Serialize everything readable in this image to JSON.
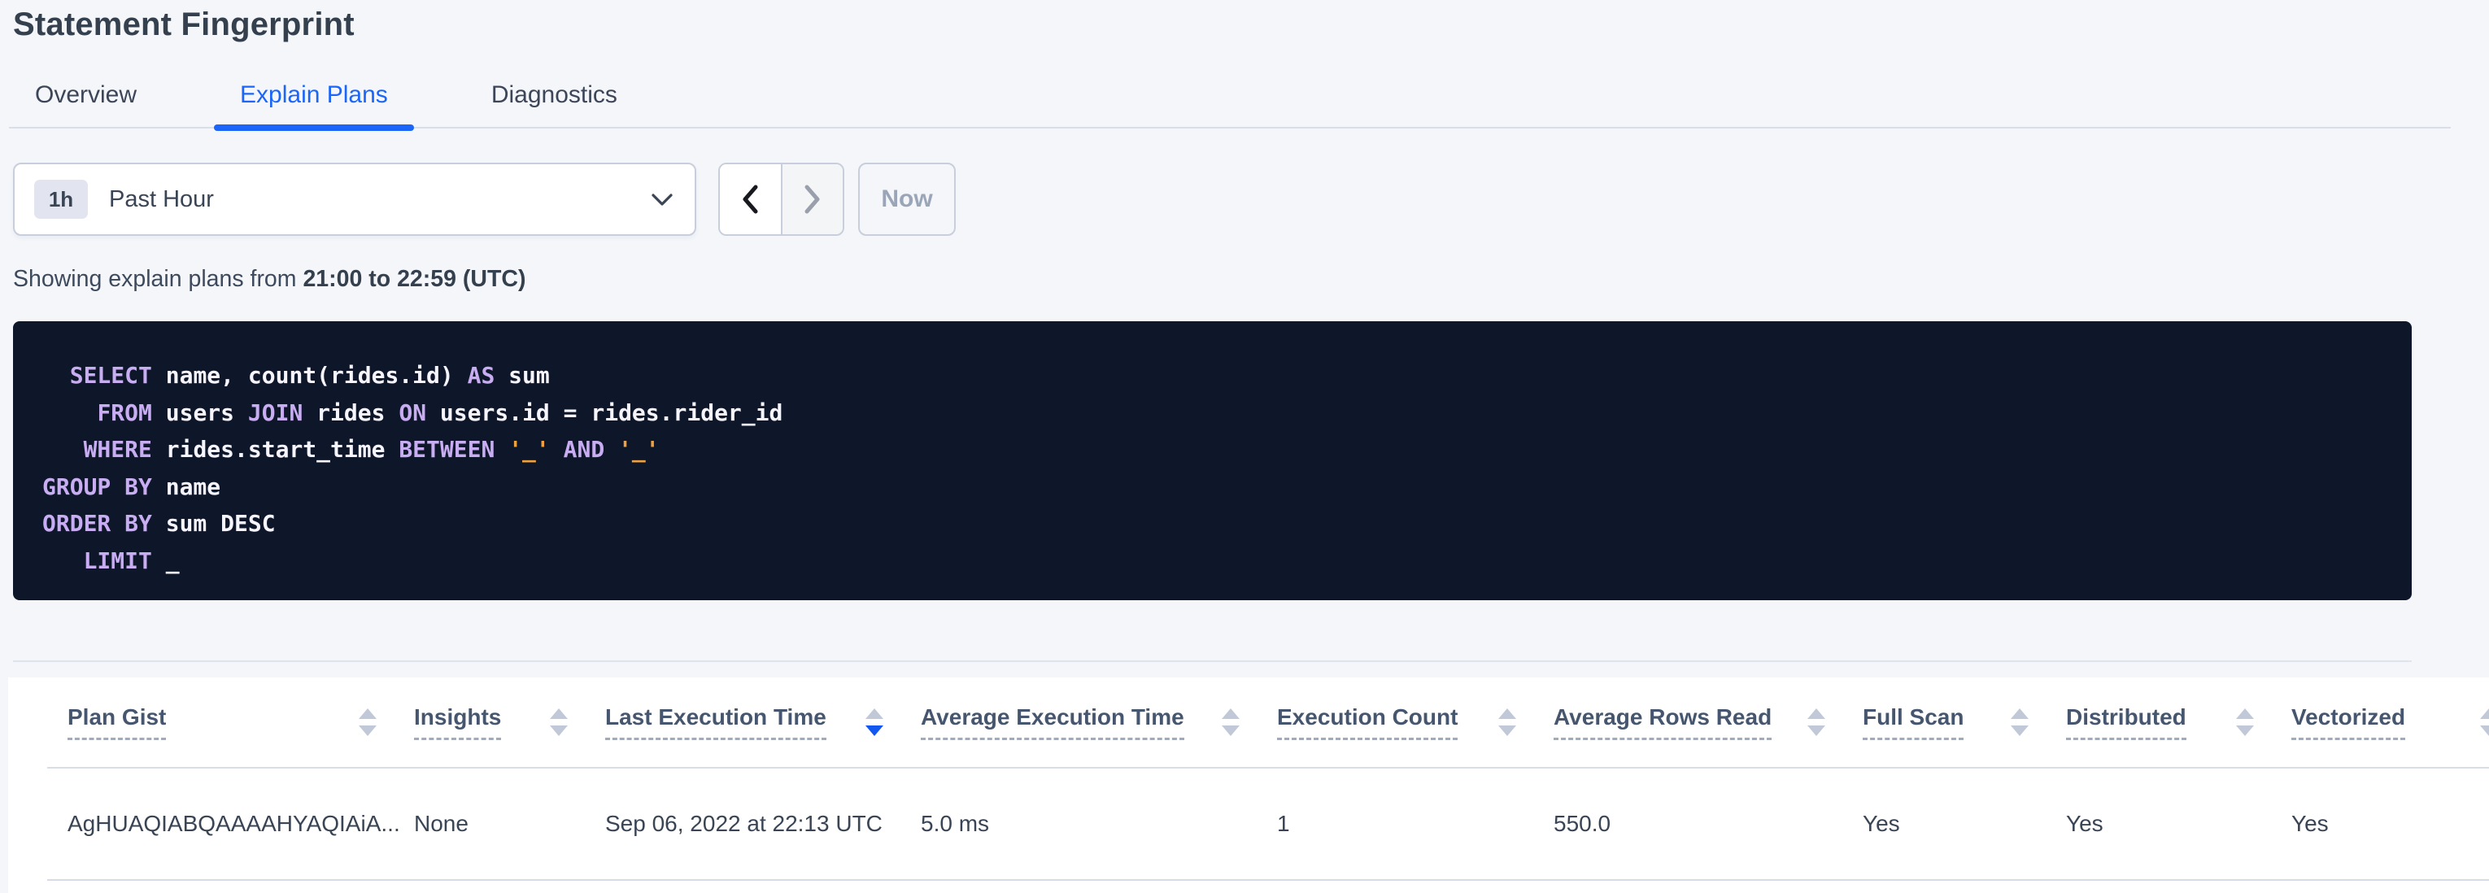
{
  "page": {
    "title": "Statement Fingerprint"
  },
  "tabs": [
    {
      "label": "Overview",
      "active": false
    },
    {
      "label": "Explain Plans",
      "active": true
    },
    {
      "label": "Diagnostics",
      "active": false
    }
  ],
  "time_picker": {
    "interval_badge": "1h",
    "label": "Past Hour",
    "prev_enabled": true,
    "next_enabled": false,
    "now_label": "Now"
  },
  "summary": {
    "prefix": "Showing explain plans from ",
    "range": "21:00 to 22:59 (UTC)"
  },
  "sql": {
    "lines": [
      [
        {
          "c": "p",
          "s": "  "
        },
        {
          "c": "k",
          "s": "SELECT"
        },
        {
          "c": "p",
          "s": " name, count(rides.id) "
        },
        {
          "c": "k",
          "s": "AS"
        },
        {
          "c": "p",
          "s": " sum"
        }
      ],
      [
        {
          "c": "p",
          "s": "    "
        },
        {
          "c": "k",
          "s": "FROM"
        },
        {
          "c": "p",
          "s": " users "
        },
        {
          "c": "k",
          "s": "JOIN"
        },
        {
          "c": "p",
          "s": " rides "
        },
        {
          "c": "k",
          "s": "ON"
        },
        {
          "c": "p",
          "s": " users.id = rides.rider_id"
        }
      ],
      [
        {
          "c": "p",
          "s": "   "
        },
        {
          "c": "k",
          "s": "WHERE"
        },
        {
          "c": "p",
          "s": " rides.start_time "
        },
        {
          "c": "k",
          "s": "BETWEEN"
        },
        {
          "c": "p",
          "s": " "
        },
        {
          "c": "s",
          "s": "'_'"
        },
        {
          "c": "p",
          "s": " "
        },
        {
          "c": "k",
          "s": "AND"
        },
        {
          "c": "p",
          "s": " "
        },
        {
          "c": "s",
          "s": "'_'"
        }
      ],
      [
        {
          "c": "k",
          "s": "GROUP BY"
        },
        {
          "c": "p",
          "s": " name"
        }
      ],
      [
        {
          "c": "k",
          "s": "ORDER BY"
        },
        {
          "c": "p",
          "s": " sum DESC"
        }
      ],
      [
        {
          "c": "p",
          "s": "   "
        },
        {
          "c": "k",
          "s": "LIMIT"
        },
        {
          "c": "p",
          "s": " _"
        }
      ]
    ]
  },
  "table": {
    "columns": [
      {
        "key": "plan-gist",
        "label": "Plan Gist",
        "sort": "none"
      },
      {
        "key": "insights",
        "label": "Insights",
        "sort": "none"
      },
      {
        "key": "last-execution-time",
        "label": "Last Execution Time",
        "sort": "desc"
      },
      {
        "key": "average-execution-time",
        "label": "Average Execution Time",
        "sort": "none"
      },
      {
        "key": "execution-count",
        "label": "Execution Count",
        "sort": "none"
      },
      {
        "key": "average-rows-read",
        "label": "Average Rows Read",
        "sort": "none"
      },
      {
        "key": "full-scan",
        "label": "Full Scan",
        "sort": "none"
      },
      {
        "key": "distributed",
        "label": "Distributed",
        "sort": "none"
      },
      {
        "key": "vectorized",
        "label": "Vectorized",
        "sort": "none"
      }
    ],
    "rows": [
      {
        "cells": [
          "AgHUAQIABQAAAAHYAQIAiA...",
          "None",
          "Sep 06, 2022 at 22:13 UTC",
          "5.0 ms",
          "1",
          "550.0",
          "Yes",
          "Yes",
          "Yes"
        ]
      }
    ]
  },
  "colors": {
    "tab_accent": "#1b66f8",
    "sort_accent": "#1357f1",
    "code_background": "#0e1729",
    "code_keyword": "#c9adf2",
    "code_literal": "#efa13f",
    "code_text": "#f6f4fc",
    "page_background": "#f4f6fa"
  }
}
